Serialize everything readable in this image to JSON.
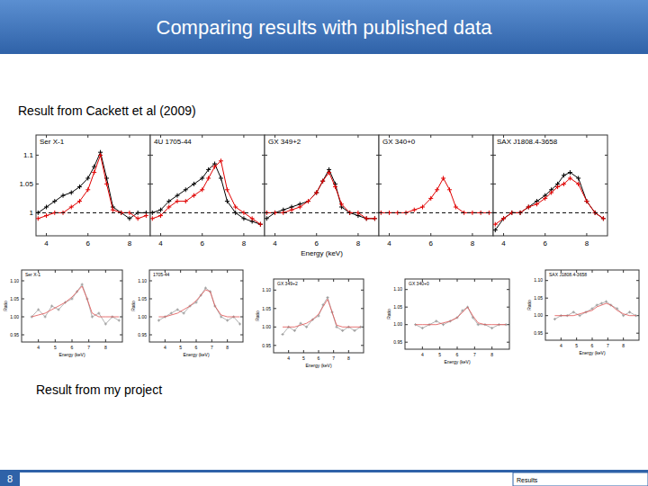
{
  "slide": {
    "title": "Comparing results with published data",
    "top_caption": "Result from Cackett et al (2009)",
    "bottom_caption": "Result from my project",
    "page_number": "8",
    "footer": "Results"
  },
  "chart_data": [
    {
      "type": "line",
      "title": "Ser X-1",
      "x": [
        3.6,
        4,
        4.4,
        4.8,
        5.2,
        5.6,
        6,
        6.3,
        6.6,
        6.9,
        7.2,
        7.6,
        8,
        8.4,
        8.8
      ],
      "xlim": [
        3.5,
        9
      ],
      "ylim": [
        0.96,
        1.135
      ],
      "xticks": [
        4,
        6,
        8
      ],
      "yticks": [
        1,
        1.05,
        1.1
      ],
      "series": [
        {
          "color": "#000000",
          "marker": "cross",
          "values": [
            1.0,
            1.01,
            1.02,
            1.03,
            1.035,
            1.045,
            1.06,
            1.08,
            1.105,
            1.06,
            1.01,
            1.0,
            0.99,
            1.0,
            1.0
          ]
        },
        {
          "color": "#e00000",
          "marker": "cross",
          "values": [
            0.99,
            0.995,
            1.0,
            1.0,
            1.01,
            1.02,
            1.04,
            1.07,
            1.1,
            1.05,
            1.005,
            1.0,
            1.0,
            0.99,
            0.995
          ]
        },
        {
          "color": "#000000",
          "line_style": "dashed",
          "x": [
            3.5,
            9
          ],
          "values": [
            1,
            1
          ]
        }
      ]
    },
    {
      "type": "line",
      "title": "4U 1705-44",
      "x": [
        3.6,
        4,
        4.4,
        4.8,
        5.2,
        5.6,
        6,
        6.3,
        6.6,
        6.9,
        7.2,
        7.6,
        8,
        8.4,
        8.8
      ],
      "xlim": [
        3.5,
        9
      ],
      "ylim": [
        0.96,
        1.135
      ],
      "xticks": [
        4,
        6,
        8
      ],
      "yticks": [
        1,
        1.05,
        1.1
      ],
      "tick_labels": "x",
      "series": [
        {
          "color": "#000000",
          "marker": "cross",
          "values": [
            1.0,
            1.005,
            1.02,
            1.03,
            1.04,
            1.05,
            1.06,
            1.075,
            1.085,
            1.06,
            1.02,
            1.0,
            0.99,
            0.985,
            0.98
          ]
        },
        {
          "color": "#e00000",
          "marker": "cross",
          "values": [
            0.99,
            0.995,
            1.01,
            1.02,
            1.02,
            1.03,
            1.04,
            1.06,
            1.08,
            1.09,
            1.04,
            1.01,
            1.0,
            0.99,
            0.98
          ]
        },
        {
          "color": "#000000",
          "line_style": "dashed",
          "x": [
            3.5,
            9
          ],
          "values": [
            1,
            1
          ]
        }
      ]
    },
    {
      "type": "line",
      "title": "GX 349+2",
      "x_label": "Energy (keV)",
      "x": [
        3.6,
        4,
        4.4,
        4.8,
        5.2,
        5.6,
        6,
        6.3,
        6.6,
        6.9,
        7.2,
        7.6,
        8,
        8.4,
        8.8
      ],
      "xlim": [
        3.5,
        9
      ],
      "ylim": [
        0.96,
        1.135
      ],
      "xticks": [
        4,
        6,
        8
      ],
      "yticks": [
        1,
        1.05,
        1.1
      ],
      "tick_labels": "x",
      "series": [
        {
          "color": "#000000",
          "marker": "cross",
          "values": [
            0.99,
            1.0,
            1.005,
            1.01,
            1.015,
            1.02,
            1.035,
            1.055,
            1.075,
            1.05,
            1.01,
            1.0,
            0.995,
            0.99,
            0.99
          ]
        },
        {
          "color": "#e00000",
          "marker": "cross",
          "values": [
            1.0,
            1.0,
            1.0,
            1.005,
            1.01,
            1.02,
            1.035,
            1.055,
            1.07,
            1.045,
            1.015,
            1.0,
            1.0,
            0.99,
            0.99
          ]
        },
        {
          "color": "#000000",
          "line_style": "dashed",
          "x": [
            3.5,
            9
          ],
          "values": [
            1,
            1
          ]
        }
      ]
    },
    {
      "type": "line",
      "title": "GX 340+0",
      "x": [
        3.6,
        4,
        4.4,
        4.8,
        5.2,
        5.6,
        6,
        6.3,
        6.6,
        6.9,
        7.2,
        7.6,
        8,
        8.4,
        8.8
      ],
      "xlim": [
        3.5,
        9
      ],
      "ylim": [
        0.96,
        1.135
      ],
      "xticks": [
        4,
        6,
        8
      ],
      "yticks": [
        1,
        1.05,
        1.1
      ],
      "tick_labels": "x",
      "series": [
        {
          "color": "#e00000",
          "marker": "cross",
          "values": [
            1.0,
            1.0,
            1.0,
            1.0,
            1.005,
            1.01,
            1.025,
            1.04,
            1.06,
            1.04,
            1.01,
            1.0,
            1.0,
            1.0,
            1.0
          ]
        },
        {
          "color": "#000000",
          "line_style": "dashed",
          "x": [
            3.5,
            9
          ],
          "values": [
            1,
            1
          ]
        }
      ]
    },
    {
      "type": "line",
      "title": "SAX J1808.4-3658",
      "x": [
        3.6,
        4,
        4.4,
        4.8,
        5.2,
        5.6,
        6,
        6.3,
        6.6,
        6.9,
        7.2,
        7.6,
        8,
        8.4,
        8.8
      ],
      "xlim": [
        3.5,
        9
      ],
      "ylim": [
        0.96,
        1.135
      ],
      "xticks": [
        4,
        6,
        8
      ],
      "yticks": [
        1,
        1.05,
        1.1
      ],
      "tick_labels": "x",
      "series": [
        {
          "color": "#000000",
          "marker": "cross",
          "values": [
            0.97,
            0.99,
            1.0,
            1.0,
            1.01,
            1.02,
            1.03,
            1.04,
            1.05,
            1.065,
            1.07,
            1.06,
            1.02,
            1.0,
            0.99
          ]
        },
        {
          "color": "#e00000",
          "marker": "cross",
          "values": [
            0.98,
            0.99,
            1.0,
            1.0,
            1.01,
            1.015,
            1.025,
            1.035,
            1.045,
            1.05,
            1.06,
            1.05,
            1.02,
            1.0,
            0.99
          ]
        },
        {
          "color": "#000000",
          "line_style": "dashed",
          "x": [
            3.5,
            9
          ],
          "values": [
            1,
            1
          ]
        }
      ]
    },
    {
      "type": "line",
      "title": "Ser X-1",
      "x_label": "Energy (keV)",
      "y_label": "Ratio",
      "x": [
        3.6,
        4,
        4.4,
        4.8,
        5.2,
        5.6,
        6,
        6.3,
        6.6,
        6.9,
        7.2,
        7.6,
        8,
        8.4,
        8.8
      ],
      "xlim": [
        3,
        9
      ],
      "ylim": [
        0.93,
        1.13
      ],
      "xticks": [
        4,
        5,
        6,
        7,
        8
      ],
      "yticks": [
        {
          "value": 0.95,
          "label": "0.95"
        },
        {
          "value": 1,
          "label": "1.00"
        },
        {
          "value": 1.05,
          "label": "1.05"
        },
        {
          "value": 1.1,
          "label": "1.10"
        }
      ],
      "series": [
        {
          "color": "#a0a0a0",
          "marker": "cross",
          "values": [
            1.0,
            1.02,
            1.0,
            1.03,
            1.02,
            1.04,
            1.05,
            1.07,
            1.09,
            1.05,
            1.0,
            1.01,
            0.98,
            1.0,
            0.99
          ]
        },
        {
          "color": "#e05050",
          "values": [
            1.0,
            1.005,
            1.01,
            1.02,
            1.03,
            1.04,
            1.055,
            1.07,
            1.085,
            1.05,
            1.01,
            1.0,
            1.0,
            1.0,
            1.0
          ]
        }
      ]
    },
    {
      "type": "line",
      "title": "1705-44",
      "x_label": "Energy (keV)",
      "y_label": "Ratio",
      "x": [
        3.6,
        4,
        4.4,
        4.8,
        5.2,
        5.6,
        6,
        6.3,
        6.6,
        6.9,
        7.2,
        7.6,
        8,
        8.4,
        8.8
      ],
      "xlim": [
        3,
        9
      ],
      "ylim": [
        0.93,
        1.13
      ],
      "xticks": [
        4,
        5,
        6,
        7,
        8
      ],
      "yticks": [
        {
          "value": 0.95,
          "label": "0.95"
        },
        {
          "value": 1,
          "label": "1.00"
        },
        {
          "value": 1.05,
          "label": "1.05"
        },
        {
          "value": 1.1,
          "label": "1.10"
        }
      ],
      "series": [
        {
          "color": "#a0a0a0",
          "marker": "cross",
          "values": [
            0.99,
            1.0,
            1.01,
            1.02,
            1.01,
            1.03,
            1.04,
            1.06,
            1.08,
            1.07,
            1.03,
            1.0,
            0.99,
            1.0,
            0.98
          ]
        },
        {
          "color": "#e05050",
          "values": [
            1.0,
            1.0,
            1.005,
            1.01,
            1.02,
            1.03,
            1.045,
            1.06,
            1.075,
            1.07,
            1.03,
            1.005,
            1.0,
            1.0,
            1.0
          ]
        }
      ]
    },
    {
      "type": "line",
      "title": "GX 349+2",
      "x_label": "Energy (keV)",
      "y_label": "Ratio",
      "x": [
        3.6,
        4,
        4.4,
        4.8,
        5.2,
        5.6,
        6,
        6.3,
        6.6,
        6.9,
        7.2,
        7.6,
        8,
        8.4,
        8.8
      ],
      "xlim": [
        3,
        9
      ],
      "ylim": [
        0.93,
        1.13
      ],
      "xticks": [
        4,
        5,
        6,
        7,
        8
      ],
      "yticks": [
        {
          "value": 0.95,
          "label": "0.95"
        },
        {
          "value": 1,
          "label": "1.00"
        },
        {
          "value": 1.05,
          "label": "1.05"
        },
        {
          "value": 1.1,
          "label": "1.10"
        }
      ],
      "series": [
        {
          "color": "#a0a0a0",
          "marker": "cross",
          "values": [
            0.98,
            1.0,
            0.99,
            1.01,
            1.0,
            1.02,
            1.03,
            1.06,
            1.08,
            1.04,
            1.0,
            0.99,
            1.0,
            0.99,
            1.0
          ]
        },
        {
          "color": "#e05050",
          "values": [
            1.0,
            1.0,
            1.0,
            1.005,
            1.01,
            1.02,
            1.035,
            1.055,
            1.075,
            1.04,
            1.005,
            1.0,
            1.0,
            1.0,
            1.0
          ]
        }
      ]
    },
    {
      "type": "line",
      "title": "GX 340+0",
      "x_label": "Energy (keV)",
      "y_label": "Ratio",
      "x": [
        3.6,
        4,
        4.4,
        4.8,
        5.2,
        5.6,
        6,
        6.3,
        6.6,
        6.9,
        7.2,
        7.6,
        8,
        8.4,
        8.8
      ],
      "xlim": [
        3,
        9
      ],
      "ylim": [
        0.93,
        1.13
      ],
      "xticks": [
        4,
        5,
        6,
        7,
        8
      ],
      "yticks": [
        {
          "value": 0.95,
          "label": "0.95"
        },
        {
          "value": 1,
          "label": "1.00"
        },
        {
          "value": 1.05,
          "label": "1.05"
        },
        {
          "value": 1.1,
          "label": "1.10"
        }
      ],
      "series": [
        {
          "color": "#a0a0a0",
          "marker": "cross",
          "values": [
            1.0,
            0.99,
            1.0,
            1.01,
            1.0,
            1.01,
            1.02,
            1.04,
            1.05,
            1.02,
            1.0,
            1.0,
            0.99,
            1.0,
            1.0
          ]
        },
        {
          "color": "#e05050",
          "values": [
            1.0,
            1.0,
            1.0,
            1.0,
            1.005,
            1.01,
            1.02,
            1.035,
            1.05,
            1.025,
            1.005,
            1.0,
            1.0,
            1.0,
            1.0
          ]
        }
      ]
    },
    {
      "type": "line",
      "title": "SAX J1808.4-3658",
      "x_label": "Energy (keV)",
      "y_label": "Ratio",
      "x": [
        3.6,
        4,
        4.4,
        4.8,
        5.2,
        5.6,
        6,
        6.3,
        6.6,
        6.9,
        7.2,
        7.6,
        8,
        8.4,
        8.8
      ],
      "xlim": [
        3,
        9
      ],
      "ylim": [
        0.93,
        1.13
      ],
      "xticks": [
        4,
        5,
        6,
        7,
        8
      ],
      "yticks": [
        {
          "value": 0.95,
          "label": "0.95"
        },
        {
          "value": 1,
          "label": "1.00"
        },
        {
          "value": 1.05,
          "label": "1.05"
        },
        {
          "value": 1.1,
          "label": "1.10"
        }
      ],
      "series": [
        {
          "color": "#a0a0a0",
          "marker": "cross",
          "values": [
            0.99,
            1.0,
            1.0,
            1.01,
            1.0,
            1.01,
            1.02,
            1.03,
            1.035,
            1.04,
            1.03,
            1.02,
            1.0,
            1.01,
            1.0
          ]
        },
        {
          "color": "#e05050",
          "values": [
            1.0,
            1.0,
            1.0,
            1.0,
            1.005,
            1.01,
            1.015,
            1.025,
            1.03,
            1.035,
            1.03,
            1.015,
            1.005,
            1.0,
            1.0
          ]
        }
      ]
    }
  ]
}
